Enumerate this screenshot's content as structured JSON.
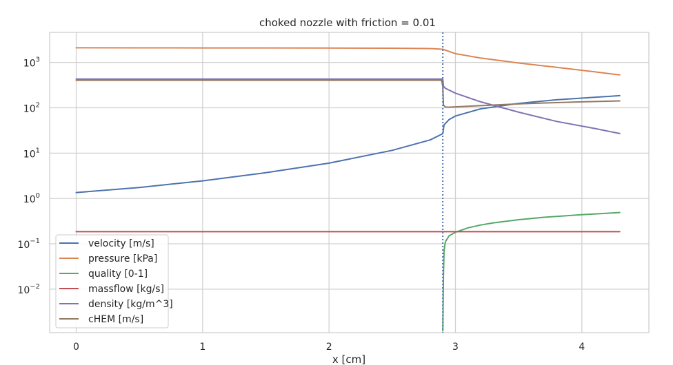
{
  "chart_data": {
    "type": "line",
    "title": "choked nozzle with friction = 0.01",
    "xlabel": "x [cm]",
    "ylabel": "",
    "xlim": [
      -0.21,
      4.53
    ],
    "ylim": [
      0.0011,
      4600
    ],
    "yscale": "log",
    "grid": true,
    "legend_position": "lower-left",
    "x_ticks": [
      {
        "value": 0,
        "label": "0"
      },
      {
        "value": 1,
        "label": "1"
      },
      {
        "value": 2,
        "label": "2"
      },
      {
        "value": 3,
        "label": "3"
      },
      {
        "value": 4,
        "label": "4"
      }
    ],
    "y_ticks": [
      {
        "value": 0.01,
        "base": "10",
        "exp": "−2"
      },
      {
        "value": 0.1,
        "base": "10",
        "exp": "−1"
      },
      {
        "value": 1,
        "base": "10",
        "exp": "0"
      },
      {
        "value": 10,
        "base": "10",
        "exp": "1"
      },
      {
        "value": 100,
        "base": "10",
        "exp": "2"
      },
      {
        "value": 1000,
        "base": "10",
        "exp": "3"
      }
    ],
    "vline": {
      "x": 2.9,
      "style": "dotted",
      "color": "#4c72b0"
    },
    "series": [
      {
        "name": "velocity [m/s]",
        "color": "#4c72b0",
        "x": [
          0,
          0.5,
          1.0,
          1.5,
          2.0,
          2.5,
          2.8,
          2.89,
          2.9,
          2.91,
          2.95,
          3.0,
          3.2,
          3.5,
          3.8,
          4.1,
          4.3
        ],
        "y": [
          1.35,
          1.75,
          2.45,
          3.7,
          6.0,
          11.5,
          19.5,
          26.0,
          27.0,
          42.0,
          55.0,
          66.0,
          95.0,
          125.0,
          150.0,
          170.0,
          185.0
        ]
      },
      {
        "name": "pressure [kPa]",
        "color": "#dd8452",
        "x": [
          0,
          0.5,
          1.0,
          1.5,
          2.0,
          2.5,
          2.8,
          2.9,
          3.0,
          3.2,
          3.5,
          3.8,
          4.1,
          4.3
        ],
        "y": [
          2100,
          2095,
          2090,
          2085,
          2075,
          2060,
          2020,
          1950,
          1560,
          1250,
          970,
          780,
          620,
          530
        ]
      },
      {
        "name": "quality [0-1]",
        "color": "#55a868",
        "x": [
          2.9,
          2.905,
          2.91,
          2.92,
          2.95,
          3.0,
          3.1,
          3.2,
          3.3,
          3.5,
          3.7,
          4.0,
          4.3
        ],
        "y": [
          0.0012,
          0.02,
          0.07,
          0.11,
          0.15,
          0.18,
          0.225,
          0.26,
          0.29,
          0.34,
          0.385,
          0.44,
          0.49
        ]
      },
      {
        "name": "massflow [kg/s]",
        "color": "#c44e52",
        "x": [
          0,
          4.3
        ],
        "y": [
          0.185,
          0.185
        ]
      },
      {
        "name": "density [kg/m^3]",
        "color": "#8172b3",
        "x": [
          0,
          1.0,
          2.0,
          2.8,
          2.89,
          2.9,
          2.905,
          2.92,
          3.0,
          3.2,
          3.5,
          3.8,
          4.1,
          4.3
        ],
        "y": [
          430,
          430,
          430,
          430,
          430,
          425,
          300,
          270,
          210,
          135,
          80,
          50,
          35,
          27
        ]
      },
      {
        "name": "cHEM [m/s]",
        "color": "#937860",
        "x": [
          0,
          1.0,
          2.0,
          2.8,
          2.89,
          2.9,
          2.905,
          2.92,
          2.95,
          3.0,
          3.3,
          3.6,
          4.0,
          4.3
        ],
        "y": [
          405,
          405,
          405,
          405,
          405,
          300,
          115,
          104,
          103,
          105,
          115,
          125,
          135,
          142
        ]
      }
    ]
  }
}
